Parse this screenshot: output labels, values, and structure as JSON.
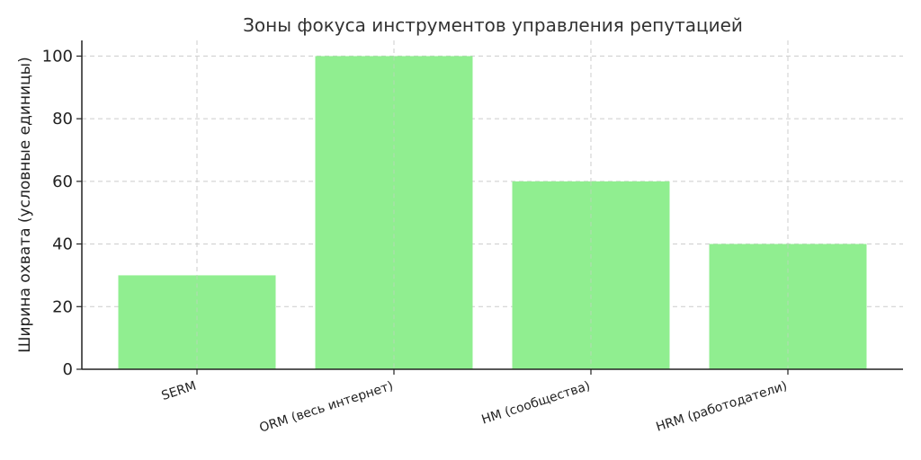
{
  "chart_data": {
    "type": "bar",
    "title": "Зоны фокуса инструментов управления репутацией",
    "xlabel": "",
    "ylabel": "Ширина охвата (условные единицы)",
    "categories": [
      "SERM",
      "ORM (весь интернет)",
      "HM (сообщества)",
      "HRM (работодатели)"
    ],
    "values": [
      30,
      100,
      60,
      40
    ],
    "ylim": [
      0,
      105
    ],
    "yticks": [
      0,
      20,
      40,
      60,
      80,
      100
    ],
    "grid": true,
    "bar_color": "#90ee90"
  }
}
